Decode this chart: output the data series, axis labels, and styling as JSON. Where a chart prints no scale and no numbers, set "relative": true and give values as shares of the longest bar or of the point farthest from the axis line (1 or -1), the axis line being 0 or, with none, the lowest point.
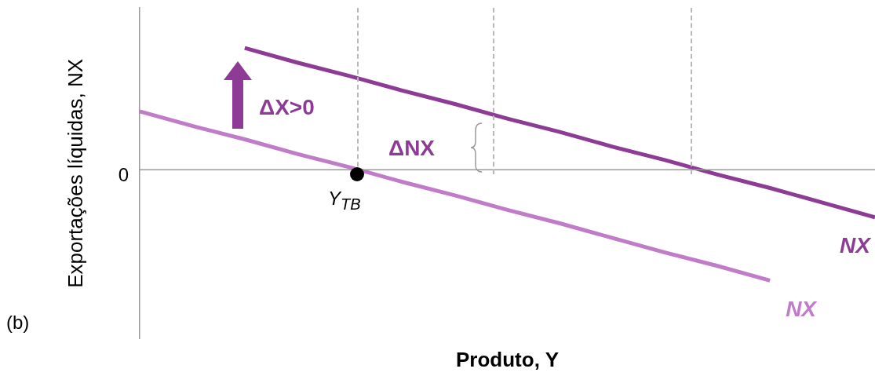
{
  "chart_data": {
    "type": "line",
    "relative": true,
    "xlabel": "Produto, Y",
    "ylabel": "Exportações líquidas, NX",
    "categories": [
      null,
      null,
      null,
      null,
      null,
      null,
      null,
      null,
      null,
      null,
      null,
      null,
      null,
      null,
      null
    ],
    "series": [
      {
        "name": "NX",
        "color": "#c07cc8",
        "values": [
          0.48,
          0.36,
          0.25,
          0.13,
          0.02,
          -0.1,
          -0.21,
          -0.33,
          -0.44,
          -0.56,
          -0.68,
          -0.79,
          -0.91,
          null,
          null
        ]
      },
      {
        "name": "NX",
        "color": "#8e3b96",
        "values": [
          null,
          null,
          1.0,
          0.88,
          0.77,
          0.65,
          0.54,
          0.42,
          0.31,
          0.19,
          0.08,
          -0.04,
          -0.15,
          -0.27,
          -0.39
        ]
      }
    ],
    "annotations": [
      "ΔX>0",
      "ΔNX",
      "Y$_{TB}$",
      "(b)",
      "0"
    ],
    "legend": false,
    "marker": "none"
  }
}
